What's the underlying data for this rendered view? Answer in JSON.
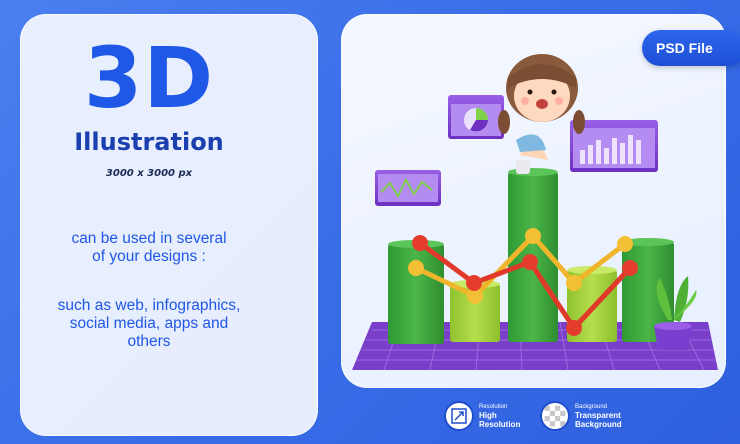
{
  "headline": "3D",
  "subheadline": "Illustration",
  "dimensions": "3000 x 3000 px",
  "description_lines": [
    "can be used in several",
    "of your designs :"
  ],
  "usage_lines": [
    "such as web, infographics,",
    "social media, apps and",
    "others"
  ],
  "badge": "PSD File",
  "features": [
    {
      "label": "Resolution",
      "value_lines": [
        "High",
        "Resolution"
      ],
      "icon": "expand-arrows-icon"
    },
    {
      "label": "Background",
      "value_lines": [
        "Transparent",
        "Background"
      ],
      "icon": "checkerboard-icon"
    }
  ],
  "colors": {
    "background": "#3a6ee8",
    "accent_blue": "#1f57e6",
    "bar_green": "#3aa53a",
    "bar_lime": "#a6d33b",
    "line_red": "#e0392a",
    "line_yellow": "#f0b52a",
    "purple_panel": "#7b3fd0",
    "floor_purple": "#7a3fc9"
  }
}
